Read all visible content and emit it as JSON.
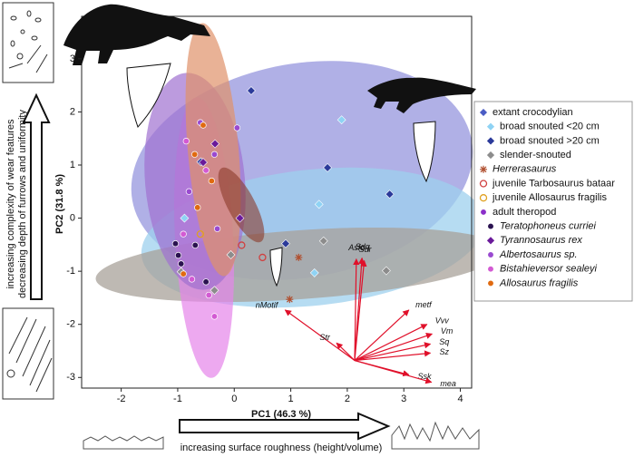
{
  "chart_data": {
    "type": "scatter",
    "xlabel": "PC1 (46.3 %)",
    "ylabel": "PC2 (31.8 %)",
    "xlim": [
      -2.7,
      4.2
    ],
    "ylim": [
      -3.2,
      3.8
    ],
    "xticks": [
      -2,
      -1,
      0,
      1,
      2,
      3,
      4
    ],
    "yticks": [
      -3,
      -2,
      -1,
      0,
      1,
      2,
      3
    ],
    "grid": false,
    "legend_position": "right",
    "annotations": {
      "left_1": "increasing complexity of wear features",
      "left_2": "decreasing depth of furrows and uniformity",
      "bottom": "increasing surface roughness (height/volume)"
    },
    "legend_headers": [
      {
        "name": "extant crocodylian",
        "color": "#4a5cc4",
        "marker": "diamond",
        "before": 0
      },
      {
        "name": "adult theropod",
        "color": "#8b2fc9",
        "marker": "circle",
        "before": 6
      }
    ],
    "series": [
      {
        "name": "broad snouted <20 cm",
        "color": "#8fd3f4",
        "marker": "diamond",
        "italic": false,
        "x": [
          1.9,
          -0.88,
          1.5,
          1.42
        ],
        "y": [
          1.85,
          0.0,
          0.26,
          -1.03
        ]
      },
      {
        "name": "broad snouted >20 cm",
        "color": "#2b3a9a",
        "marker": "diamond",
        "italic": false,
        "x": [
          0.3,
          -0.59,
          1.65,
          2.75,
          0.91
        ],
        "y": [
          2.4,
          1.06,
          0.95,
          0.45,
          -0.48
        ]
      },
      {
        "name": "slender-snouted",
        "color": "#8c8c8c",
        "marker": "diamond",
        "italic": false,
        "x": [
          1.58,
          2.69,
          -0.06,
          -0.94,
          -0.35
        ],
        "y": [
          -0.43,
          -0.99,
          -0.69,
          -1.01,
          -1.36
        ]
      },
      {
        "name": "Herrerasaurus",
        "color": "#b05030",
        "marker": "star",
        "italic": true,
        "x": [
          1.14,
          0.98
        ],
        "y": [
          -0.74,
          -1.53
        ]
      },
      {
        "name": "juvenile Tarbosaurus bataar",
        "color": "#d04040",
        "marker": "open",
        "italic": false,
        "x": [
          0.5,
          0.13
        ],
        "y": [
          -0.74,
          -0.51
        ]
      },
      {
        "name": "juvenile Allosaurus fragilis",
        "color": "#e0a020",
        "marker": "open",
        "italic": false,
        "x": [
          -0.6
        ],
        "y": [
          -0.3
        ]
      },
      {
        "name": "Teratophoneus curriei",
        "color": "#2a1250",
        "marker": "circle",
        "italic": true,
        "x": [
          -1.04,
          -0.99,
          -0.94,
          -0.69,
          -0.5
        ],
        "y": [
          -0.48,
          -0.7,
          -0.86,
          -0.51,
          -1.2
        ]
      },
      {
        "name": "Tyrannosaurus rex",
        "color": "#6a1a9a",
        "marker": "diamond",
        "italic": true,
        "x": [
          -0.34,
          -0.55,
          0.1
        ],
        "y": [
          1.4,
          1.05,
          0.0
        ]
      },
      {
        "name": "Albertosaurus sp.",
        "color": "#9a4ad0",
        "marker": "circle",
        "italic": true,
        "x": [
          -0.6,
          -0.35,
          -0.8,
          -0.3,
          0.05
        ],
        "y": [
          1.8,
          1.2,
          0.5,
          -0.2,
          1.7
        ]
      },
      {
        "name": "Bistahieversor sealeyi",
        "color": "#d35ad3",
        "marker": "circle",
        "italic": true,
        "x": [
          -0.85,
          -0.5,
          -0.9,
          -0.45,
          -0.35,
          -0.75
        ],
        "y": [
          1.45,
          0.9,
          -0.3,
          -1.45,
          -1.85,
          -1.15
        ]
      },
      {
        "name": "Allosaurus fragilis",
        "color": "#e06a10",
        "marker": "circle",
        "italic": true,
        "x": [
          -0.55,
          -0.7,
          -0.4,
          -0.9,
          -0.65
        ],
        "y": [
          1.75,
          1.2,
          0.7,
          -1.05,
          0.2
        ]
      }
    ],
    "vectors": {
      "color": "#e0102a",
      "origin": [
        2.13,
        -2.68
      ],
      "names": [
        "nMotif",
        "Str",
        "Asfc",
        "Sdq",
        "Sdr",
        "metf",
        "Vvv",
        "Vm",
        "Sq",
        "Sz",
        "Ssk",
        "mea"
      ],
      "x": [
        0.9,
        1.81,
        2.16,
        2.26,
        2.3,
        3.09,
        3.41,
        3.5,
        3.47,
        3.47,
        3.09,
        3.49
      ],
      "y": [
        -1.73,
        -2.35,
        -0.77,
        -0.75,
        -0.8,
        -1.73,
        -2.0,
        -2.18,
        -2.37,
        -2.54,
        -2.95,
        -3.09
      ]
    }
  }
}
